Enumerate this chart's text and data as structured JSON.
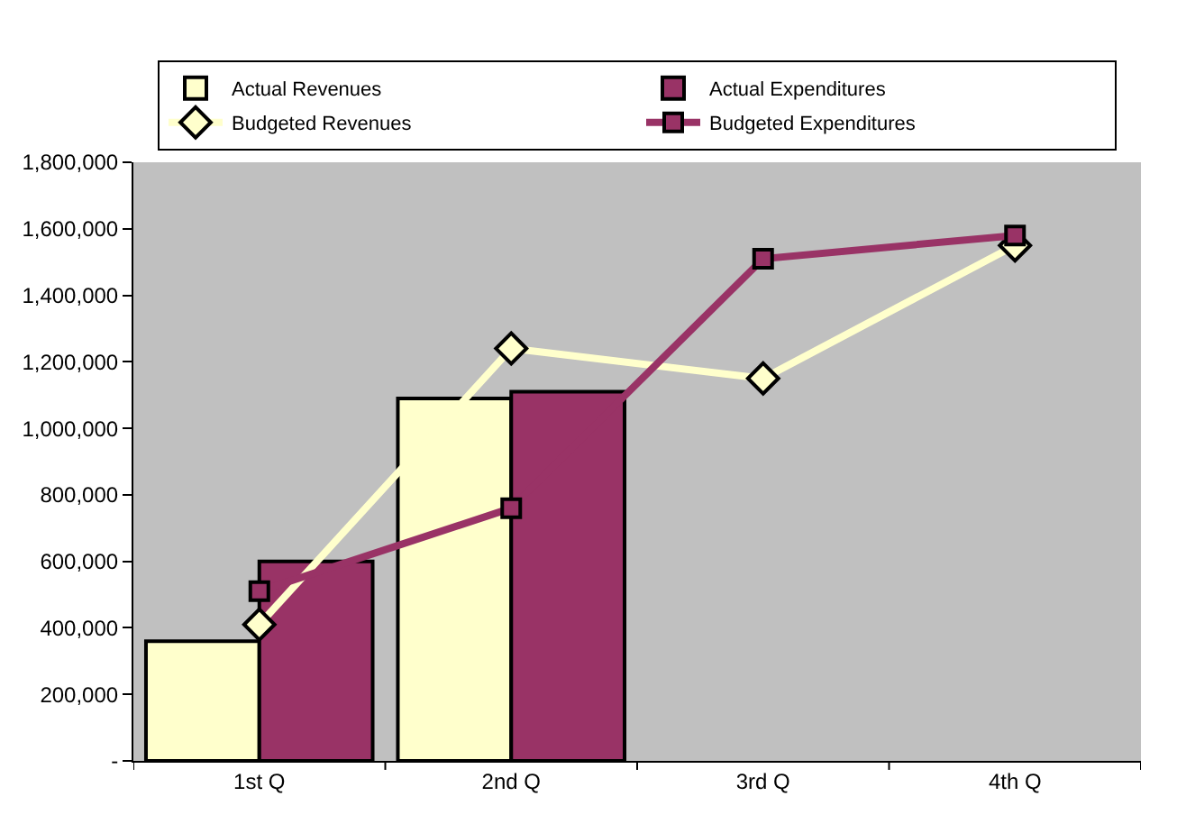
{
  "chart_data": {
    "type": "bar",
    "categories": [
      "1st Q",
      "2nd Q",
      "3rd Q",
      "4th Q"
    ],
    "series": [
      {
        "name": "Actual Revenues",
        "color": "#ffffcc",
        "values": [
          360000,
          1090000,
          null,
          null
        ]
      },
      {
        "name": "Actual Expenditures",
        "color": "#993366",
        "values": [
          600000,
          1110000,
          null,
          null
        ]
      },
      {
        "name": "Budgeted Revenues",
        "type": "line",
        "color": "#ffffcc",
        "marker": "diamond",
        "values": [
          410000,
          1240000,
          1150000,
          1550000
        ]
      },
      {
        "name": "Budgeted Expenditures",
        "type": "line",
        "color": "#993366",
        "marker": "square",
        "values": [
          510000,
          760000,
          1510000,
          1580000
        ]
      }
    ],
    "ylim": [
      0,
      1800000
    ],
    "yticks": [
      {
        "value": 0,
        "label": "-"
      },
      {
        "value": 200000,
        "label": "200,000"
      },
      {
        "value": 400000,
        "label": "400,000"
      },
      {
        "value": 600000,
        "label": "600,000"
      },
      {
        "value": 800000,
        "label": "800,000"
      },
      {
        "value": 1000000,
        "label": "1,000,000"
      },
      {
        "value": 1200000,
        "label": "1,200,000"
      },
      {
        "value": 1400000,
        "label": "1,400,000"
      },
      {
        "value": 1600000,
        "label": "1,600,000"
      },
      {
        "value": 1800000,
        "label": "1,800,000"
      }
    ],
    "grid": false,
    "legend": "top"
  }
}
